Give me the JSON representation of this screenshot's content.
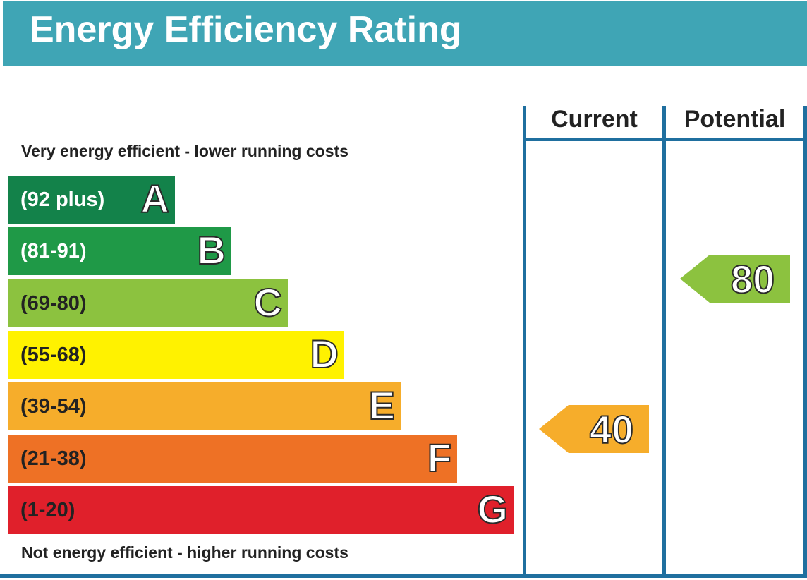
{
  "title": "Energy Efficiency Rating",
  "columns": {
    "current": "Current",
    "potential": "Potential"
  },
  "top_caption": "Very energy efficient - lower running costs",
  "bottom_caption": "Not energy efficient - higher running costs",
  "chart_data": {
    "type": "bar",
    "title": "Energy Efficiency Rating",
    "bands": [
      {
        "letter": "A",
        "range": "(92 plus)",
        "color": "#13824a",
        "text_color": "#ffffff"
      },
      {
        "letter": "B",
        "range": "(81-91)",
        "color": "#1f9947",
        "text_color": "#ffffff"
      },
      {
        "letter": "C",
        "range": "(69-80)",
        "color": "#8cc23f",
        "text_color": "#222222"
      },
      {
        "letter": "D",
        "range": "(55-68)",
        "color": "#fff200",
        "text_color": "#222222"
      },
      {
        "letter": "E",
        "range": "(39-54)",
        "color": "#f6ad2b",
        "text_color": "#222222"
      },
      {
        "letter": "F",
        "range": "(21-38)",
        "color": "#ee7125",
        "text_color": "#222222"
      },
      {
        "letter": "G",
        "range": "(1-20)",
        "color": "#e0202b",
        "text_color": "#222222"
      }
    ],
    "current": {
      "value": 40,
      "band": "E",
      "color": "#f6ad2b"
    },
    "potential": {
      "value": 80,
      "band": "C",
      "color": "#8cc23f"
    }
  }
}
